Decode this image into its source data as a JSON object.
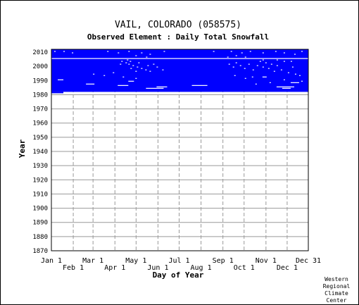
{
  "credit": [
    "Western",
    "Regional",
    "Climate",
    "Center"
  ],
  "chart_data": {
    "type": "heatmap",
    "title": "VAIL, COLORADO   (058575)",
    "subtitle": "Observed Element : Daily Total Snowfall",
    "xlabel": "Day of Year",
    "ylabel": "Year",
    "ylim": [
      1870,
      2012
    ],
    "xlim": [
      1,
      365
    ],
    "y_ticks": [
      2010,
      2000,
      1990,
      1980,
      1970,
      1960,
      1950,
      1940,
      1930,
      1920,
      1910,
      1900,
      1890,
      1880,
      1870
    ],
    "x_ticks_upper": [
      {
        "label": "Jan 1",
        "day": 1
      },
      {
        "label": "Mar 1",
        "day": 60
      },
      {
        "label": "May 1",
        "day": 121
      },
      {
        "label": "Jul 1",
        "day": 182
      },
      {
        "label": "Sep 1",
        "day": 244
      },
      {
        "label": "Nov 1",
        "day": 305
      },
      {
        "label": "Dec 31",
        "day": 365
      }
    ],
    "x_ticks_lower": [
      {
        "label": "Feb 1",
        "day": 32
      },
      {
        "label": "Apr 1",
        "day": 91
      },
      {
        "label": "Jun 1",
        "day": 152
      },
      {
        "label": "Aug 1",
        "day": 213
      },
      {
        "label": "Oct 1",
        "day": 274
      },
      {
        "label": "Dec 1",
        "day": 335
      }
    ],
    "grid": true,
    "colors": {
      "data": "#0000ff",
      "missing": "#ffffff",
      "grid": "#999999",
      "frame": "#000000"
    },
    "data_period": [
      1982,
      2012
    ],
    "record_start_day_1982": 18,
    "missing_segments": [
      {
        "year": 2005,
        "start_day": 1,
        "end_day": 365
      },
      {
        "year": 1984,
        "start_day": 135,
        "end_day": 160
      },
      {
        "year": 1985,
        "start_day": 150,
        "end_day": 165
      },
      {
        "year": 1986,
        "start_day": 200,
        "end_day": 222
      },
      {
        "year": 1985,
        "start_day": 320,
        "end_day": 345
      },
      {
        "year": 1984,
        "start_day": 328,
        "end_day": 340
      },
      {
        "year": 1987,
        "start_day": 50,
        "end_day": 62
      },
      {
        "year": 1986,
        "start_day": 95,
        "end_day": 110
      },
      {
        "year": 1989,
        "start_day": 110,
        "end_day": 118
      },
      {
        "year": 1988,
        "start_day": 340,
        "end_day": 352
      },
      {
        "year": 1990,
        "start_day": 10,
        "end_day": 18
      },
      {
        "year": 1992,
        "start_day": 300,
        "end_day": 306
      }
    ],
    "missing_points": [
      {
        "year": 2010,
        "day": 5
      },
      {
        "year": 2010,
        "day": 18
      },
      {
        "year": 2009,
        "day": 30
      },
      {
        "year": 2010,
        "day": 80
      },
      {
        "year": 2009,
        "day": 95
      },
      {
        "year": 2010,
        "day": 110
      },
      {
        "year": 2009,
        "day": 128
      },
      {
        "year": 2008,
        "day": 140
      },
      {
        "year": 2010,
        "day": 160
      },
      {
        "year": 2010,
        "day": 230
      },
      {
        "year": 2010,
        "day": 255
      },
      {
        "year": 2009,
        "day": 270
      },
      {
        "year": 2010,
        "day": 282
      },
      {
        "year": 2009,
        "day": 300
      },
      {
        "year": 2010,
        "day": 318
      },
      {
        "year": 2009,
        "day": 330
      },
      {
        "year": 2008,
        "day": 345
      },
      {
        "year": 2010,
        "day": 355
      },
      {
        "year": 2001,
        "day": 110
      },
      {
        "year": 2000,
        "day": 116
      },
      {
        "year": 1999,
        "day": 122
      },
      {
        "year": 1998,
        "day": 128
      },
      {
        "year": 2002,
        "day": 124
      },
      {
        "year": 2003,
        "day": 112
      },
      {
        "year": 1997,
        "day": 134
      },
      {
        "year": 1996,
        "day": 140
      },
      {
        "year": 2000,
        "day": 137
      },
      {
        "year": 2001,
        "day": 145
      },
      {
        "year": 1999,
        "day": 150
      },
      {
        "year": 1997,
        "day": 158
      },
      {
        "year": 2003,
        "day": 100
      },
      {
        "year": 2002,
        "day": 106
      },
      {
        "year": 2001,
        "day": 98
      },
      {
        "year": 1998,
        "day": 113
      },
      {
        "year": 1996,
        "day": 120
      },
      {
        "year": 2004,
        "day": 108
      },
      {
        "year": 2001,
        "day": 252
      },
      {
        "year": 1999,
        "day": 258
      },
      {
        "year": 2002,
        "day": 262
      },
      {
        "year": 2000,
        "day": 268
      },
      {
        "year": 1998,
        "day": 274
      },
      {
        "year": 2001,
        "day": 280
      },
      {
        "year": 1997,
        "day": 286
      },
      {
        "year": 2000,
        "day": 292
      },
      {
        "year": 2003,
        "day": 296
      },
      {
        "year": 1999,
        "day": 300
      },
      {
        "year": 2002,
        "day": 304
      },
      {
        "year": 1998,
        "day": 308
      },
      {
        "year": 2001,
        "day": 312
      },
      {
        "year": 1996,
        "day": 316
      },
      {
        "year": 2000,
        "day": 320
      },
      {
        "year": 1997,
        "day": 326
      },
      {
        "year": 2003,
        "day": 330
      },
      {
        "year": 1995,
        "day": 336
      },
      {
        "year": 1999,
        "day": 342
      },
      {
        "year": 1994,
        "day": 346
      },
      {
        "year": 1993,
        "day": 352
      },
      {
        "year": 1994,
        "day": 60
      },
      {
        "year": 1993,
        "day": 75
      },
      {
        "year": 1995,
        "day": 88
      },
      {
        "year": 1992,
        "day": 102
      },
      {
        "year": 1991,
        "day": 120
      },
      {
        "year": 1993,
        "day": 260
      },
      {
        "year": 1991,
        "day": 275
      },
      {
        "year": 1992,
        "day": 285
      },
      {
        "year": 1990,
        "day": 330
      },
      {
        "year": 1989,
        "day": 355
      },
      {
        "year": 1988,
        "day": 310
      },
      {
        "year": 1987,
        "day": 290
      },
      {
        "year": 2006,
        "day": 250
      },
      {
        "year": 2007,
        "day": 262
      },
      {
        "year": 2006,
        "day": 275
      },
      {
        "year": 2007,
        "day": 120
      },
      {
        "year": 2006,
        "day": 135
      },
      {
        "year": 2004,
        "day": 300
      },
      {
        "year": 2004,
        "day": 320
      },
      {
        "year": 2003,
        "day": 340
      }
    ]
  }
}
